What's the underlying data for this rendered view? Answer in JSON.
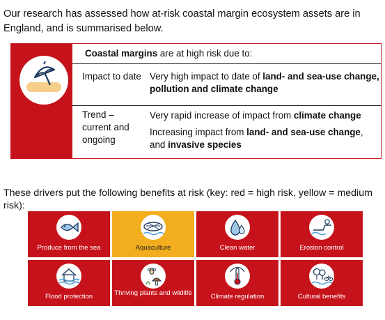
{
  "intro": "Our research has assessed how at-risk coastal margin ecosystem assets are in England, and is summarised below.",
  "risk_card": {
    "heading_bold": "Coastal margins",
    "heading_rest": " are at high risk due to:",
    "icon": "umbrella-beach-icon",
    "rows": [
      {
        "label": "Impact to date",
        "body": [
          {
            "text": "Very high impact to date of ",
            "bold": false
          },
          {
            "text": "land- and sea-use change, pollution and climate change",
            "bold": true
          }
        ]
      },
      {
        "label": "Trend – current and ongoing",
        "line1": [
          {
            "text": "Very rapid increase of impact from ",
            "bold": false
          },
          {
            "text": "climate change",
            "bold": true
          }
        ],
        "line2": [
          {
            "text": "Increasing impact from ",
            "bold": false
          },
          {
            "text": "land- and sea-use change",
            "bold": true
          },
          {
            "text": ", and ",
            "bold": false
          },
          {
            "text": "invasive species",
            "bold": true
          }
        ]
      }
    ]
  },
  "benefits_intro": "These drivers put the following benefits at risk (key: red = high risk, yellow = medium risk):",
  "benefits": [
    {
      "label": "Produce from the sea",
      "risk": "high",
      "icon": "fish-icon"
    },
    {
      "label": "Aquaculture",
      "risk": "medium",
      "icon": "aquaculture-net-icon"
    },
    {
      "label": "Clean water",
      "risk": "high",
      "icon": "water-drop-icon"
    },
    {
      "label": "Erosion control",
      "risk": "high",
      "icon": "coastal-cliff-icon"
    },
    {
      "label": "Flood protection",
      "risk": "high",
      "icon": "flooded-house-icon"
    },
    {
      "label": "Thriving plants and wildlife",
      "risk": "high",
      "icon": "bee-mushroom-icon"
    },
    {
      "label": "Climate regulation",
      "risk": "high",
      "icon": "thermometer-icon"
    },
    {
      "label": "Cultural benefits",
      "risk": "high",
      "icon": "trees-bicycle-icon"
    }
  ],
  "colors": {
    "high_risk": "#c6131b",
    "medium_risk": "#f2ae1e"
  }
}
